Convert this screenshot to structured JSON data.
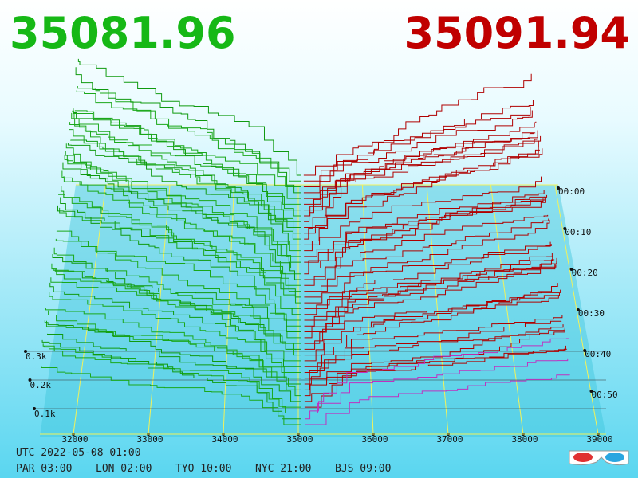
{
  "header": {
    "bid": "35081.96",
    "ask": "35091.94"
  },
  "price_axis": [
    "32000",
    "33000",
    "34000",
    "35000",
    "36000",
    "37000",
    "38000",
    "39000"
  ],
  "depth_axis": [
    "0.3k",
    "0.2k",
    "0.1k"
  ],
  "time_axis": [
    "00:00",
    "00:10",
    "00:20",
    "00:30",
    "00:40",
    "00:50"
  ],
  "footer": {
    "utc": "UTC 2022-05-08 01:00",
    "zones": [
      "PAR 03:00",
      "LON 02:00",
      "TYO 10:00",
      "NYC 21:00",
      "BJS 09:00"
    ]
  }
}
